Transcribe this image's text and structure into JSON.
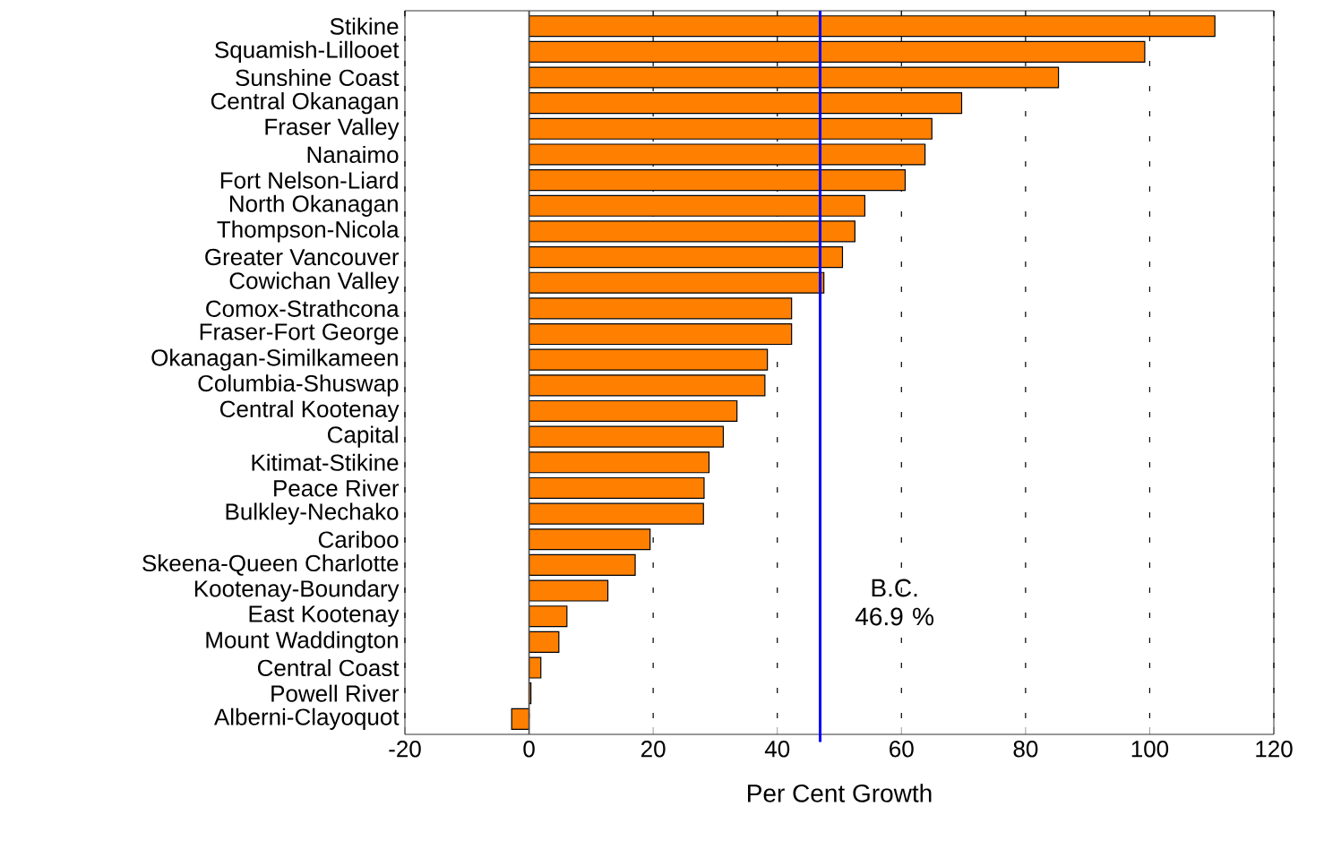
{
  "chart_data": {
    "type": "bar",
    "orientation": "horizontal",
    "xlabel": "Per Cent Growth",
    "categories": [
      "Stikine",
      "Squamish-Lillooet",
      "Sunshine Coast",
      "Central Okanagan",
      "Fraser Valley",
      "Nanaimo",
      "Fort Nelson-Liard",
      "North Okanagan",
      "Thompson-Nicola",
      "Greater Vancouver",
      "Cowichan Valley",
      "Comox-Strathcona",
      "Fraser-Fort George",
      "Okanagan-Similkameen",
      "Columbia-Shuswap",
      "Central Kootenay",
      "Capital",
      "Kitimat-Stikine",
      "Peace River",
      "Bulkley-Nechako",
      "Cariboo",
      "Skeena-Queen Charlotte",
      "Kootenay-Boundary",
      "East Kootenay",
      "Mount Waddington",
      "Central Coast",
      "Powell River",
      "Alberni-Clayoquot"
    ],
    "values": [
      110.5,
      99.2,
      85.3,
      69.7,
      64.9,
      63.8,
      60.6,
      54.1,
      52.5,
      50.5,
      47.5,
      42.3,
      42.3,
      38.4,
      38.0,
      33.5,
      31.3,
      29.0,
      28.2,
      28.1,
      19.5,
      17.1,
      12.7,
      6.1,
      4.8,
      1.9,
      0.3,
      -2.8
    ],
    "color": "#ff8000",
    "xlim": [
      -20,
      120
    ],
    "xticks": [
      -20,
      0,
      20,
      40,
      60,
      80,
      100,
      120
    ],
    "grid": "x",
    "ref_lines": [
      {
        "axis": "x",
        "value": 46.9,
        "label": "B.C. 46.9 %",
        "color": "#0000ff"
      }
    ]
  }
}
